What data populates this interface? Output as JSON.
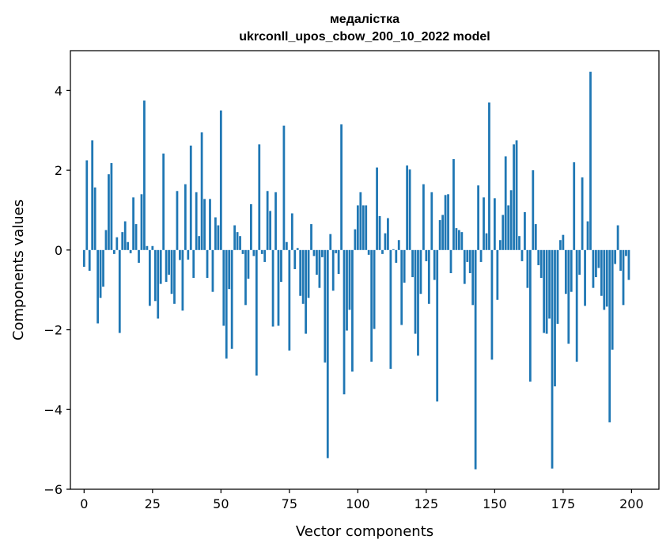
{
  "chart_data": {
    "type": "bar",
    "title": "медалістка\nukrconll_upos_cbow_200_10_2022 model",
    "title_lines": [
      "медалістка",
      "ukrconll_upos_cbow_200_10_2022 model"
    ],
    "xlabel": "Vector components",
    "ylabel": "Components values",
    "xlim": [
      -5,
      210
    ],
    "ylim": [
      -6,
      5
    ],
    "xticks": [
      0,
      25,
      50,
      75,
      100,
      125,
      150,
      175,
      200
    ],
    "yticks": [
      -6,
      -4,
      -2,
      0,
      2,
      4
    ],
    "ytick_labels": [
      "−6",
      "−4",
      "−2",
      "0",
      "2",
      "4"
    ],
    "bar_color": "#1f77b4",
    "x": [
      0,
      1,
      2,
      3,
      4,
      5,
      6,
      7,
      8,
      9,
      10,
      11,
      12,
      13,
      14,
      15,
      16,
      17,
      18,
      19,
      20,
      21,
      22,
      23,
      24,
      25,
      26,
      27,
      28,
      29,
      30,
      31,
      32,
      33,
      34,
      35,
      36,
      37,
      38,
      39,
      40,
      41,
      42,
      43,
      44,
      45,
      46,
      47,
      48,
      49,
      50,
      51,
      52,
      53,
      54,
      55,
      56,
      57,
      58,
      59,
      60,
      61,
      62,
      63,
      64,
      65,
      66,
      67,
      68,
      69,
      70,
      71,
      72,
      73,
      74,
      75,
      76,
      77,
      78,
      79,
      80,
      81,
      82,
      83,
      84,
      85,
      86,
      87,
      88,
      89,
      90,
      91,
      92,
      93,
      94,
      95,
      96,
      97,
      98,
      99,
      100,
      101,
      102,
      103,
      104,
      105,
      106,
      107,
      108,
      109,
      110,
      111,
      112,
      113,
      114,
      115,
      116,
      117,
      118,
      119,
      120,
      121,
      122,
      123,
      124,
      125,
      126,
      127,
      128,
      129,
      130,
      131,
      132,
      133,
      134,
      135,
      136,
      137,
      138,
      139,
      140,
      141,
      142,
      143,
      144,
      145,
      146,
      147,
      148,
      149,
      150,
      151,
      152,
      153,
      154,
      155,
      156,
      157,
      158,
      159,
      160,
      161,
      162,
      163,
      164,
      165,
      166,
      167,
      168,
      169,
      170,
      171,
      172,
      173,
      174,
      175,
      176,
      177,
      178,
      179,
      180,
      181,
      182,
      183,
      184,
      185,
      186,
      187,
      188,
      189,
      190,
      191,
      192,
      193,
      194,
      195,
      196,
      197,
      198,
      199
    ],
    "values": [
      -0.42,
      2.25,
      -0.52,
      2.75,
      1.57,
      -1.84,
      -1.2,
      -0.92,
      0.5,
      1.9,
      2.18,
      -0.1,
      0.32,
      -2.08,
      0.45,
      0.72,
      0.2,
      -0.08,
      1.32,
      0.65,
      -0.32,
      1.4,
      3.75,
      0.1,
      -1.4,
      0.1,
      -1.28,
      -1.72,
      -0.85,
      2.42,
      -0.8,
      -0.62,
      -1.1,
      -1.35,
      1.48,
      -0.25,
      -1.52,
      1.65,
      -0.24,
      2.62,
      -0.7,
      1.45,
      0.35,
      2.95,
      1.28,
      -0.7,
      1.28,
      -1.05,
      0.82,
      0.62,
      3.5,
      -1.9,
      -2.72,
      -0.98,
      -2.48,
      0.62,
      0.45,
      0.35,
      -0.1,
      -1.38,
      -0.72,
      1.15,
      -0.15,
      -3.15,
      2.65,
      -0.1,
      -0.3,
      1.48,
      0.98,
      -1.92,
      1.45,
      -1.9,
      -0.8,
      3.12,
      0.2,
      -2.52,
      0.92,
      -0.48,
      0.05,
      -1.15,
      -1.35,
      -2.1,
      -1.2,
      0.65,
      -0.15,
      -0.62,
      -0.95,
      -0.18,
      -2.82,
      -5.22,
      0.4,
      -1.02,
      -0.08,
      -0.6,
      3.15,
      -3.62,
      -2.02,
      -1.5,
      -3.05,
      0.52,
      1.12,
      1.45,
      1.12,
      1.12,
      -0.12,
      -2.8,
      -1.98,
      2.07,
      0.85,
      -0.1,
      0.42,
      0.8,
      -2.98,
      0.02,
      -0.32,
      0.25,
      -1.88,
      -0.82,
      2.12,
      2.02,
      -0.68,
      -2.1,
      -2.65,
      -1.1,
      1.65,
      -0.28,
      -1.35,
      1.45,
      -0.75,
      -3.8,
      0.75,
      0.88,
      1.38,
      1.4,
      -0.58,
      2.28,
      0.55,
      0.5,
      0.45,
      -0.85,
      -0.3,
      -0.58,
      -1.38,
      -5.5,
      1.62,
      -0.3,
      1.32,
      0.42,
      3.7,
      -2.75,
      1.3,
      -1.25,
      0.25,
      0.88,
      2.35,
      1.12,
      1.5,
      2.65,
      2.75,
      0.35,
      -0.28,
      0.95,
      -0.95,
      -3.3,
      2.0,
      0.65,
      -0.38,
      -0.7,
      -2.08,
      -2.1,
      -1.72,
      -5.48,
      -3.42,
      -1.85,
      0.25,
      0.38,
      -1.1,
      -2.35,
      -1.05,
      2.2,
      -2.8,
      -0.62,
      1.82,
      -1.4,
      0.72,
      4.47,
      -0.95,
      -0.68,
      -0.45,
      -1.15,
      -1.5,
      -1.42,
      -4.32,
      -2.5,
      -0.35,
      0.62,
      -0.52,
      -1.38,
      -0.15,
      -0.75
    ]
  }
}
